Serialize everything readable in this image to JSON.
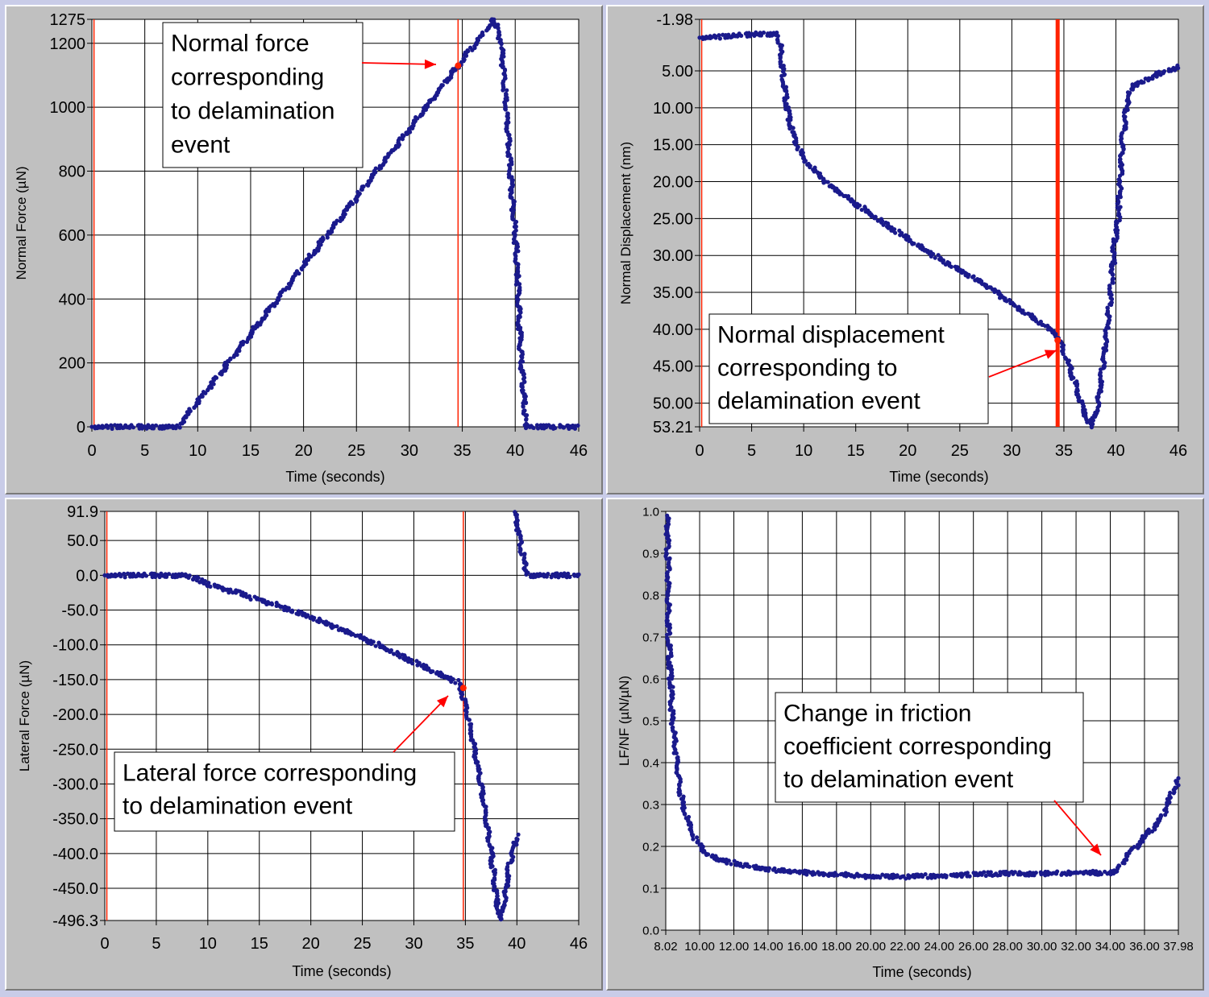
{
  "panels": [
    {
      "id": "normal-force",
      "chart_data": {
        "type": "scatter",
        "xlabel": "Time (seconds)",
        "ylabel": "Normal Force (µN)",
        "xlim": [
          0,
          46
        ],
        "ylim": [
          0,
          1275
        ],
        "x_ticks": [
          0,
          5,
          10,
          15,
          20,
          25,
          30,
          35,
          40,
          46
        ],
        "x_tick_labels": [
          "0",
          "5",
          "10",
          "15",
          "20",
          "25",
          "30",
          "35",
          "40",
          "46"
        ],
        "y_ticks": [
          0,
          200,
          400,
          600,
          800,
          1000,
          1200,
          1275
        ],
        "y_tick_labels": [
          "0",
          "200",
          "400",
          "600",
          "800",
          "1000",
          "1200",
          "1275"
        ],
        "grid": true,
        "marker_color": "#1a1a8c",
        "series": [
          {
            "points": [
              [
                0,
                0
              ],
              [
                8.2,
                0
              ],
              [
                38,
                1275
              ],
              [
                38.7,
                1200
              ],
              [
                39.5,
                820
              ],
              [
                40.1,
                550
              ],
              [
                40.5,
                250
              ],
              [
                41,
                0
              ],
              [
                46,
                0
              ]
            ]
          }
        ],
        "event_lines": [
          {
            "x": 0.2,
            "color": "#ff2200"
          },
          {
            "x": 34.6,
            "color": "#ff2200"
          }
        ],
        "event_marker": {
          "x": 34.6,
          "y": 1130
        },
        "annotation": {
          "lines": [
            "Normal force",
            "corresponding",
            "to delamination",
            "event"
          ]
        }
      }
    },
    {
      "id": "normal-displacement",
      "chart_data": {
        "type": "scatter",
        "xlabel": "Time (seconds)",
        "ylabel": "Normal Displacement (nm)",
        "xlim": [
          0,
          46
        ],
        "ylim": [
          53.21,
          -1.98
        ],
        "x_ticks": [
          0,
          5,
          10,
          15,
          20,
          25,
          30,
          35,
          40,
          46
        ],
        "x_tick_labels": [
          "0",
          "5",
          "10",
          "15",
          "20",
          "25",
          "30",
          "35",
          "40",
          "46"
        ],
        "y_ticks": [
          -1.98,
          5,
          10,
          15,
          20,
          25,
          30,
          35,
          40,
          45,
          50,
          53.21
        ],
        "y_tick_labels": [
          "-1.98",
          "5.00",
          "10.00",
          "15.00",
          "20.00",
          "25.00",
          "30.00",
          "35.00",
          "40.00",
          "45.00",
          "50.00",
          "53.21"
        ],
        "grid": true,
        "marker_color": "#1a1a8c",
        "series": [
          {
            "points": [
              [
                0,
                0.5
              ],
              [
                3,
                0.3
              ],
              [
                5.5,
                0
              ],
              [
                7.5,
                0
              ],
              [
                7.8,
                2
              ],
              [
                8.2,
                8
              ],
              [
                8.8,
                13
              ],
              [
                10,
                17
              ],
              [
                12.5,
                20.5
              ],
              [
                17.5,
                25.5
              ],
              [
                22.5,
                30
              ],
              [
                27.5,
                34
              ],
              [
                32,
                38.5
              ],
              [
                34.2,
                40.5
              ],
              [
                34.7,
                42
              ],
              [
                36,
                47
              ],
              [
                37,
                51.5
              ],
              [
                37.6,
                53.2
              ],
              [
                38.2,
                51
              ],
              [
                38.8,
                44
              ],
              [
                39.5,
                35
              ],
              [
                39.9,
                28
              ],
              [
                40.2,
                25
              ],
              [
                40.6,
                15
              ],
              [
                41,
                10
              ],
              [
                41.5,
                7
              ],
              [
                42.5,
                6.5
              ],
              [
                44,
                5.5
              ],
              [
                46,
                4.5
              ]
            ]
          }
        ],
        "event_lines": [
          {
            "x": 0.2,
            "color": "#ff2200"
          },
          {
            "x": 34.4,
            "color": "#ff2200",
            "thick": true
          }
        ],
        "event_marker": {
          "x": 34.4,
          "y": 41.5
        },
        "annotation": {
          "lines": [
            "Normal displacement",
            "corresponding to",
            "delamination event"
          ]
        }
      }
    },
    {
      "id": "lateral-force",
      "chart_data": {
        "type": "scatter",
        "xlabel": "Time (seconds)",
        "ylabel": "Lateral Force (µN)",
        "xlim": [
          0,
          46
        ],
        "ylim": [
          -496.3,
          91.9
        ],
        "x_ticks": [
          0,
          5,
          10,
          15,
          20,
          25,
          30,
          35,
          40,
          46
        ],
        "x_tick_labels": [
          "0",
          "5",
          "10",
          "15",
          "20",
          "25",
          "30",
          "35",
          "40",
          "46"
        ],
        "y_ticks": [
          91.9,
          50,
          0,
          -50,
          -100,
          -150,
          -200,
          -250,
          -300,
          -350,
          -400,
          -450,
          -496.3
        ],
        "y_tick_labels": [
          "91.9",
          "50.0",
          "0.0",
          "-50.0",
          "-100.0",
          "-150.0",
          "-200.0",
          "-250.0",
          "-300.0",
          "-350.0",
          "-400.0",
          "-450.0",
          "-496.3"
        ],
        "grid": true,
        "marker_color": "#1a1a8c",
        "series": [
          {
            "points": [
              [
                0,
                0
              ],
              [
                8,
                0
              ],
              [
                10,
                -12
              ],
              [
                15,
                -35
              ],
              [
                20,
                -60
              ],
              [
                25,
                -90
              ],
              [
                30,
                -125
              ],
              [
                34.4,
                -155
              ],
              [
                35,
                -185
              ],
              [
                36,
                -260
              ],
              [
                36.8,
                -330
              ],
              [
                37.5,
                -400
              ],
              [
                38.1,
                -475
              ],
              [
                38.4,
                -496
              ],
              [
                38.8,
                -470
              ],
              [
                39.2,
                -420
              ],
              [
                39.6,
                -395
              ],
              [
                40,
                -375
              ]
            ]
          },
          {
            "points": [
              [
                39.8,
                91
              ],
              [
                40.3,
                50
              ],
              [
                40.8,
                10
              ],
              [
                41.2,
                0
              ],
              [
                46,
                0
              ]
            ]
          }
        ],
        "event_lines": [
          {
            "x": 0.2,
            "color": "#ff2200"
          },
          {
            "x": 34.8,
            "color": "#ff2200"
          }
        ],
        "event_marker": {
          "x": 34.8,
          "y": -162
        },
        "annotation": {
          "lines": [
            "Lateral force corresponding",
            "to delamination event"
          ]
        }
      }
    },
    {
      "id": "friction-coefficient",
      "chart_data": {
        "type": "scatter",
        "xlabel": "Time (seconds)",
        "ylabel": "LF/NF (µN/µN)",
        "xlim": [
          8.02,
          37.98
        ],
        "ylim": [
          0,
          1
        ],
        "x_ticks": [
          8.02,
          10,
          12,
          14,
          16,
          18,
          20,
          22,
          24,
          26,
          28,
          30,
          32,
          34,
          36,
          37.98
        ],
        "x_tick_labels": [
          "8.02",
          "10.00",
          "12.00",
          "14.00",
          "16.00",
          "18.00",
          "20.00",
          "22.00",
          "24.00",
          "26.00",
          "28.00",
          "30.00",
          "32.00",
          "34.00",
          "36.00",
          "37.98"
        ],
        "y_ticks": [
          0,
          0.1,
          0.2,
          0.3,
          0.4,
          0.5,
          0.6,
          0.7,
          0.8,
          0.9,
          1.0
        ],
        "y_tick_labels": [
          "0.0",
          "0.1",
          "0.2",
          "0.3",
          "0.4",
          "0.5",
          "0.6",
          "0.7",
          "0.8",
          "0.9",
          "1.0"
        ],
        "grid": true,
        "marker_color": "#1a1a8c",
        "series": [
          {
            "points": [
              [
                8.1,
                0.99
              ],
              [
                8.15,
                0.86
              ],
              [
                8.2,
                0.7
              ],
              [
                8.3,
                0.6
              ],
              [
                8.4,
                0.5
              ],
              [
                8.6,
                0.43
              ],
              [
                8.8,
                0.35
              ],
              [
                9,
                0.3
              ],
              [
                9.3,
                0.26
              ],
              [
                9.7,
                0.22
              ],
              [
                10.2,
                0.19
              ],
              [
                11,
                0.17
              ],
              [
                12,
                0.16
              ],
              [
                14,
                0.145
              ],
              [
                16,
                0.138
              ],
              [
                18,
                0.133
              ],
              [
                20,
                0.128
              ],
              [
                22,
                0.128
              ],
              [
                24,
                0.13
              ],
              [
                26,
                0.133
              ],
              [
                28,
                0.135
              ],
              [
                30,
                0.135
              ],
              [
                32,
                0.137
              ],
              [
                34,
                0.137
              ],
              [
                34.4,
                0.14
              ],
              [
                35,
                0.18
              ],
              [
                36,
                0.22
              ],
              [
                37,
                0.27
              ],
              [
                37.98,
                0.36
              ]
            ]
          }
        ],
        "event_lines": [],
        "annotation": {
          "lines": [
            "Change in friction",
            "coefficient corresponding",
            "to delamination event"
          ]
        }
      }
    }
  ]
}
